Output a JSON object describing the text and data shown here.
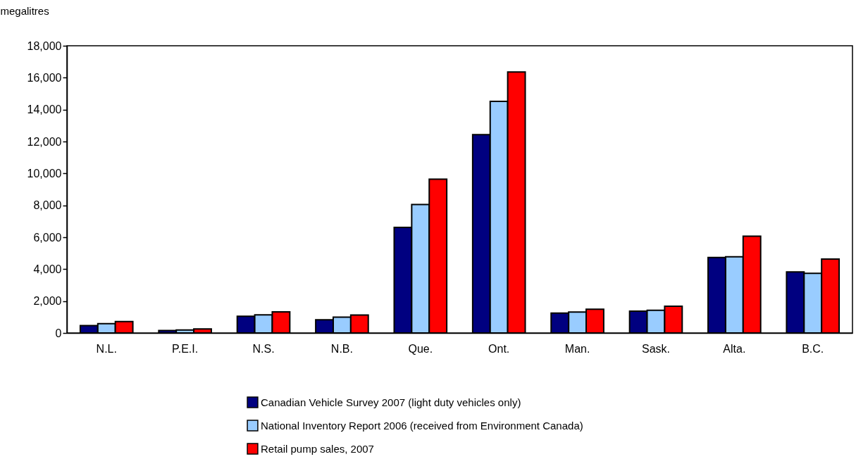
{
  "chart_data": {
    "type": "bar",
    "ylabel": "megalitres",
    "categories": [
      "N.L.",
      "P.E.I.",
      "N.S.",
      "N.B.",
      "Que.",
      "Ont.",
      "Man.",
      "Sask.",
      "Alta.",
      "B.C."
    ],
    "series": [
      {
        "name": "Canadian Vehicle Survey 2007 (light duty vehicles only)",
        "color": "#000080",
        "values": [
          460,
          150,
          1050,
          830,
          6620,
          12430,
          1250,
          1370,
          4730,
          3830
        ]
      },
      {
        "name": "National Inventory Report 2006 (received from Environment Canada)",
        "color": "#99ccff",
        "values": [
          590,
          190,
          1140,
          990,
          8050,
          14520,
          1310,
          1420,
          4780,
          3740
        ]
      },
      {
        "name": "Retail pump sales, 2007",
        "color": "#ff0000",
        "values": [
          720,
          250,
          1320,
          1120,
          9640,
          16360,
          1490,
          1680,
          6070,
          4630
        ]
      }
    ],
    "ylim": [
      0,
      18000
    ],
    "yticks": [
      0,
      {
        "value": 2000,
        "label": "2,000"
      },
      {
        "value": 4000,
        "label": "4,000"
      },
      {
        "value": 6000,
        "label": "6,000"
      },
      {
        "value": 8000,
        "label": "8,000"
      },
      {
        "value": 10000,
        "label": "10,000"
      },
      {
        "value": 12000,
        "label": "12,000"
      },
      {
        "value": 14000,
        "label": "14,000"
      },
      {
        "value": 16000,
        "label": "16,000"
      },
      {
        "value": 18000,
        "label": "18,000"
      }
    ],
    "grid": false,
    "legend": "bottom"
  }
}
